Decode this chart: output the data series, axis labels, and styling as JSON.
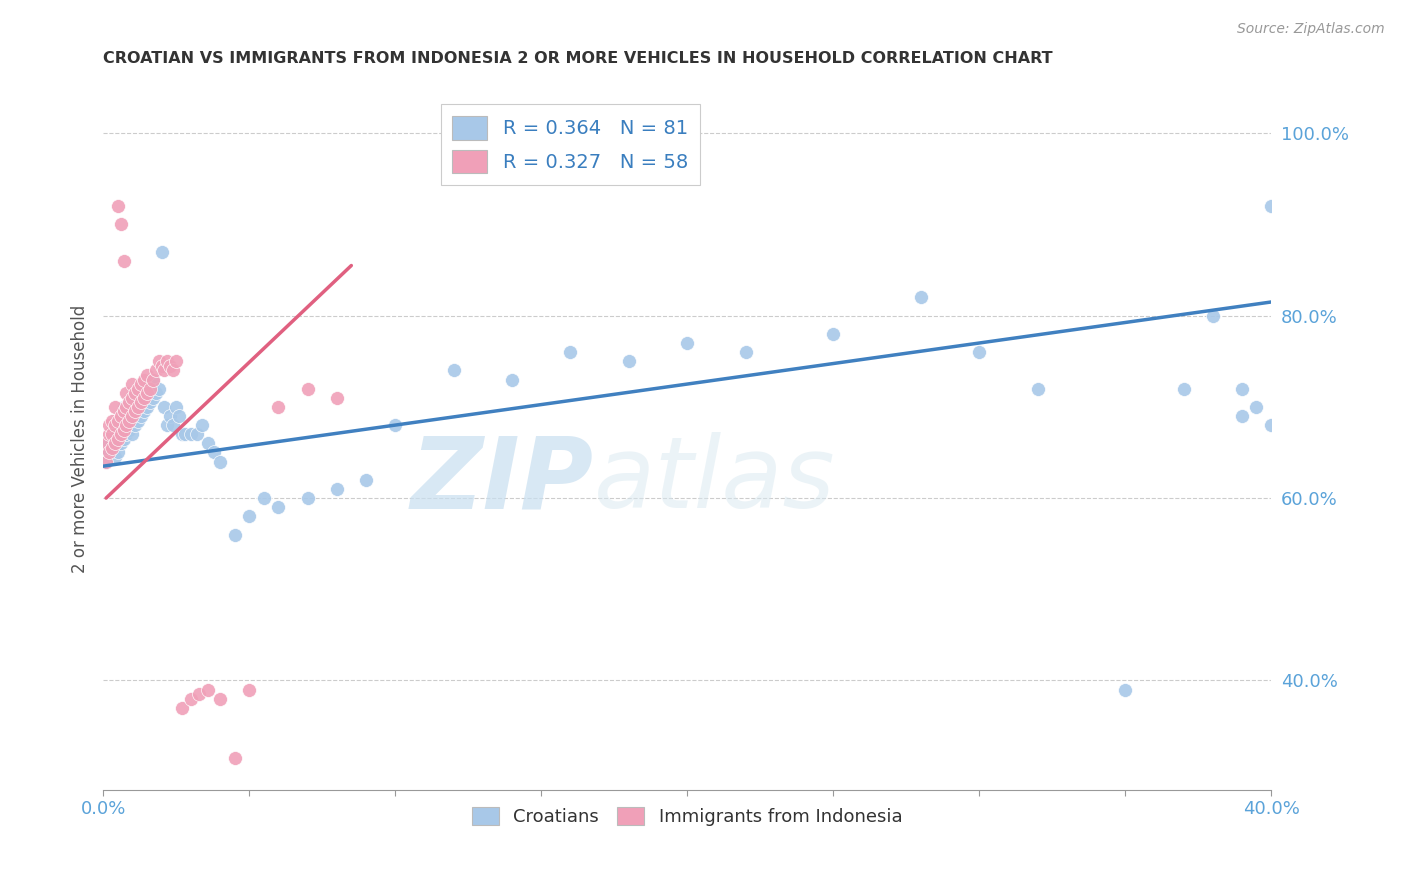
{
  "title": "CROATIAN VS IMMIGRANTS FROM INDONESIA 2 OR MORE VEHICLES IN HOUSEHOLD CORRELATION CHART",
  "source": "Source: ZipAtlas.com",
  "ylabel": "2 or more Vehicles in Household",
  "xlim": [
    0.0,
    0.4
  ],
  "ylim": [
    0.28,
    1.05
  ],
  "xticks": [
    0.0,
    0.05,
    0.1,
    0.15,
    0.2,
    0.25,
    0.3,
    0.35,
    0.4
  ],
  "xticklabels": [
    "0.0%",
    "",
    "",
    "",
    "",
    "",
    "",
    "",
    "40.0%"
  ],
  "yticks_right": [
    0.4,
    0.6,
    0.8,
    1.0
  ],
  "ytick_right_labels": [
    "40.0%",
    "60.0%",
    "80.0%",
    "100.0%"
  ],
  "blue_R": 0.364,
  "blue_N": 81,
  "pink_R": 0.327,
  "pink_N": 58,
  "blue_color": "#a8c8e8",
  "blue_line_color": "#4080c0",
  "pink_color": "#f0a0b8",
  "pink_line_color": "#e06080",
  "watermark_zip": "ZIP",
  "watermark_atlas": "atlas",
  "blue_scatter_x": [
    0.001,
    0.002,
    0.002,
    0.003,
    0.003,
    0.004,
    0.004,
    0.005,
    0.005,
    0.005,
    0.006,
    0.006,
    0.006,
    0.007,
    0.007,
    0.007,
    0.008,
    0.008,
    0.008,
    0.009,
    0.009,
    0.01,
    0.01,
    0.01,
    0.011,
    0.011,
    0.012,
    0.012,
    0.013,
    0.013,
    0.014,
    0.014,
    0.015,
    0.015,
    0.016,
    0.016,
    0.017,
    0.017,
    0.018,
    0.019,
    0.02,
    0.021,
    0.022,
    0.023,
    0.024,
    0.025,
    0.026,
    0.027,
    0.028,
    0.03,
    0.032,
    0.034,
    0.036,
    0.038,
    0.04,
    0.045,
    0.05,
    0.055,
    0.06,
    0.07,
    0.08,
    0.09,
    0.1,
    0.12,
    0.14,
    0.16,
    0.18,
    0.2,
    0.22,
    0.25,
    0.28,
    0.3,
    0.32,
    0.35,
    0.37,
    0.38,
    0.39,
    0.39,
    0.4,
    0.4,
    0.395
  ],
  "blue_scatter_y": [
    0.64,
    0.65,
    0.66,
    0.655,
    0.67,
    0.645,
    0.66,
    0.65,
    0.67,
    0.68,
    0.66,
    0.675,
    0.69,
    0.665,
    0.68,
    0.7,
    0.67,
    0.685,
    0.7,
    0.675,
    0.695,
    0.67,
    0.69,
    0.71,
    0.68,
    0.7,
    0.685,
    0.705,
    0.69,
    0.71,
    0.695,
    0.715,
    0.7,
    0.72,
    0.705,
    0.725,
    0.71,
    0.73,
    0.715,
    0.72,
    0.87,
    0.7,
    0.68,
    0.69,
    0.68,
    0.7,
    0.69,
    0.67,
    0.67,
    0.67,
    0.67,
    0.68,
    0.66,
    0.65,
    0.64,
    0.56,
    0.58,
    0.6,
    0.59,
    0.6,
    0.61,
    0.62,
    0.68,
    0.74,
    0.73,
    0.76,
    0.75,
    0.77,
    0.76,
    0.78,
    0.82,
    0.76,
    0.72,
    0.39,
    0.72,
    0.8,
    0.69,
    0.72,
    0.92,
    0.68,
    0.7
  ],
  "pink_scatter_x": [
    0.001,
    0.001,
    0.002,
    0.002,
    0.002,
    0.003,
    0.003,
    0.003,
    0.004,
    0.004,
    0.004,
    0.005,
    0.005,
    0.005,
    0.006,
    0.006,
    0.006,
    0.007,
    0.007,
    0.007,
    0.008,
    0.008,
    0.008,
    0.009,
    0.009,
    0.01,
    0.01,
    0.01,
    0.011,
    0.011,
    0.012,
    0.012,
    0.013,
    0.013,
    0.014,
    0.014,
    0.015,
    0.015,
    0.016,
    0.017,
    0.018,
    0.019,
    0.02,
    0.021,
    0.022,
    0.023,
    0.024,
    0.025,
    0.027,
    0.03,
    0.033,
    0.036,
    0.04,
    0.045,
    0.05,
    0.06,
    0.07,
    0.08
  ],
  "pink_scatter_y": [
    0.64,
    0.66,
    0.65,
    0.67,
    0.68,
    0.655,
    0.67,
    0.685,
    0.66,
    0.68,
    0.7,
    0.665,
    0.685,
    0.92,
    0.67,
    0.69,
    0.9,
    0.675,
    0.695,
    0.86,
    0.68,
    0.7,
    0.715,
    0.685,
    0.705,
    0.69,
    0.71,
    0.725,
    0.695,
    0.715,
    0.7,
    0.72,
    0.705,
    0.725,
    0.71,
    0.73,
    0.715,
    0.735,
    0.72,
    0.73,
    0.74,
    0.75,
    0.745,
    0.74,
    0.75,
    0.745,
    0.74,
    0.75,
    0.37,
    0.38,
    0.385,
    0.39,
    0.38,
    0.315,
    0.39,
    0.7,
    0.72,
    0.71
  ],
  "blue_line_x0": 0.0,
  "blue_line_y0": 0.635,
  "blue_line_x1": 0.4,
  "blue_line_y1": 0.815,
  "pink_line_x0": 0.001,
  "pink_line_y0": 0.6,
  "pink_line_x1": 0.085,
  "pink_line_y1": 0.855
}
